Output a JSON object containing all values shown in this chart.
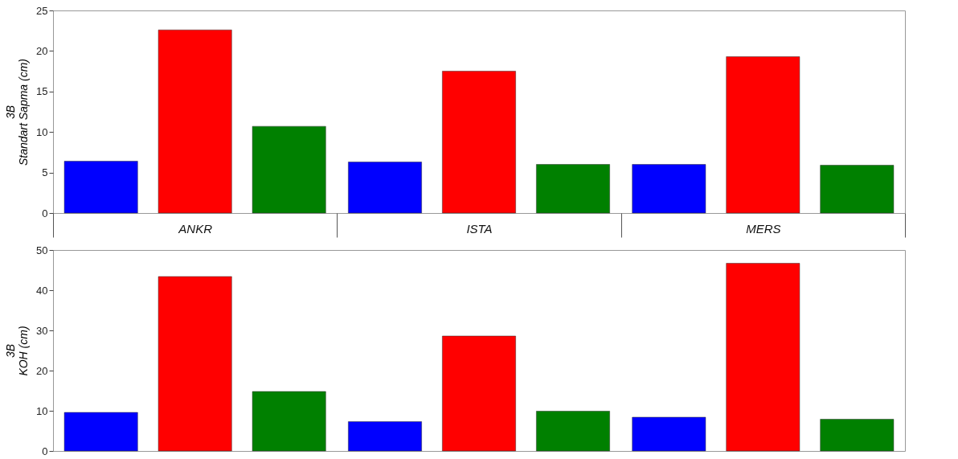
{
  "chart_data": [
    {
      "type": "bar",
      "ylabel": "3B\nStandart Sapma (cm)",
      "categories": [
        "ANKR",
        "ISTA",
        "MERS"
      ],
      "ylim": [
        0,
        25
      ],
      "yticks": [
        0,
        5,
        10,
        15,
        20,
        25
      ],
      "grid": false,
      "series": [
        {
          "color": "#0000ff",
          "values": [
            6.4,
            6.3,
            6.0
          ]
        },
        {
          "color": "#ff0000",
          "values": [
            22.6,
            17.5,
            19.3
          ]
        },
        {
          "color": "#008000",
          "values": [
            10.7,
            6.0,
            5.9
          ]
        }
      ]
    },
    {
      "type": "bar",
      "ylabel": "3B\nKOH (cm)",
      "categories": [
        null,
        null,
        null
      ],
      "ylim": [
        0,
        50
      ],
      "yticks": [
        0,
        10,
        20,
        30,
        40,
        50
      ],
      "grid": false,
      "tick_labels": "y",
      "series": [
        {
          "color": "#0000ff",
          "values": [
            9.6,
            7.3,
            8.4
          ]
        },
        {
          "color": "#ff0000",
          "values": [
            43.4,
            28.6,
            46.7
          ]
        },
        {
          "color": "#008000",
          "values": [
            14.8,
            9.9,
            7.9
          ]
        }
      ]
    }
  ]
}
